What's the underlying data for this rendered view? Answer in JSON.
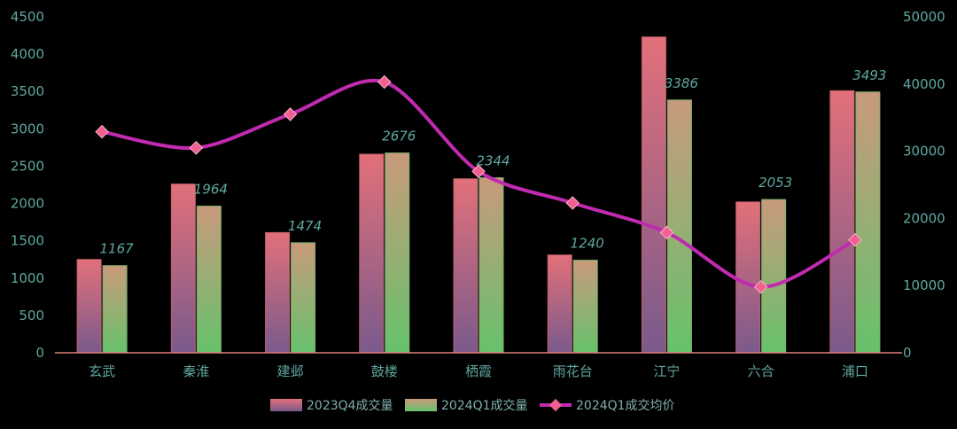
{
  "chart_data": {
    "type": "bar",
    "categories": [
      "玄武",
      "秦淮",
      "建邺",
      "鼓楼",
      "栖霞",
      "雨花台",
      "江宁",
      "六合",
      "浦口"
    ],
    "series": [
      {
        "name": "2023Q4成交量",
        "type": "bar",
        "axis": "left",
        "values": [
          1250,
          2260,
          1610,
          2660,
          2330,
          1310,
          4230,
          2020,
          3510
        ],
        "colors": [
          "#e0707a",
          "#7a5a8a"
        ]
      },
      {
        "name": "2024Q1成交量",
        "type": "bar",
        "axis": "left",
        "values": [
          1167,
          1964,
          1474,
          2676,
          2344,
          1240,
          3386,
          2053,
          3493
        ],
        "data_labels": [
          "1167",
          "1964",
          "1474",
          "2676",
          "2344",
          "1240",
          "3386",
          "2053",
          "3493"
        ],
        "colors": [
          "#c09a78",
          "#6cc070"
        ]
      },
      {
        "name": "2024Q1成交均价",
        "type": "line",
        "axis": "right",
        "values": [
          32900,
          30500,
          35500,
          40300,
          27000,
          22300,
          17900,
          9800,
          16800
        ],
        "color": "#c02bb0",
        "marker_color": "#f06090"
      }
    ],
    "y_left": {
      "min": 0,
      "max": 4500,
      "step": 500,
      "ticks": [
        "0",
        "500",
        "1000",
        "1500",
        "2000",
        "2500",
        "3000",
        "3500",
        "4000",
        "4500"
      ]
    },
    "y_right": {
      "min": 0,
      "max": 50000,
      "step": 10000,
      "ticks": [
        "0",
        "10000",
        "20000",
        "30000",
        "40000",
        "50000"
      ]
    },
    "legend": {
      "placement": "bottom-center",
      "items": [
        "2023Q4成交量",
        "2024Q1成交量",
        "2024Q1成交均价"
      ]
    },
    "grid": false,
    "axis_color": "#e0807a"
  }
}
